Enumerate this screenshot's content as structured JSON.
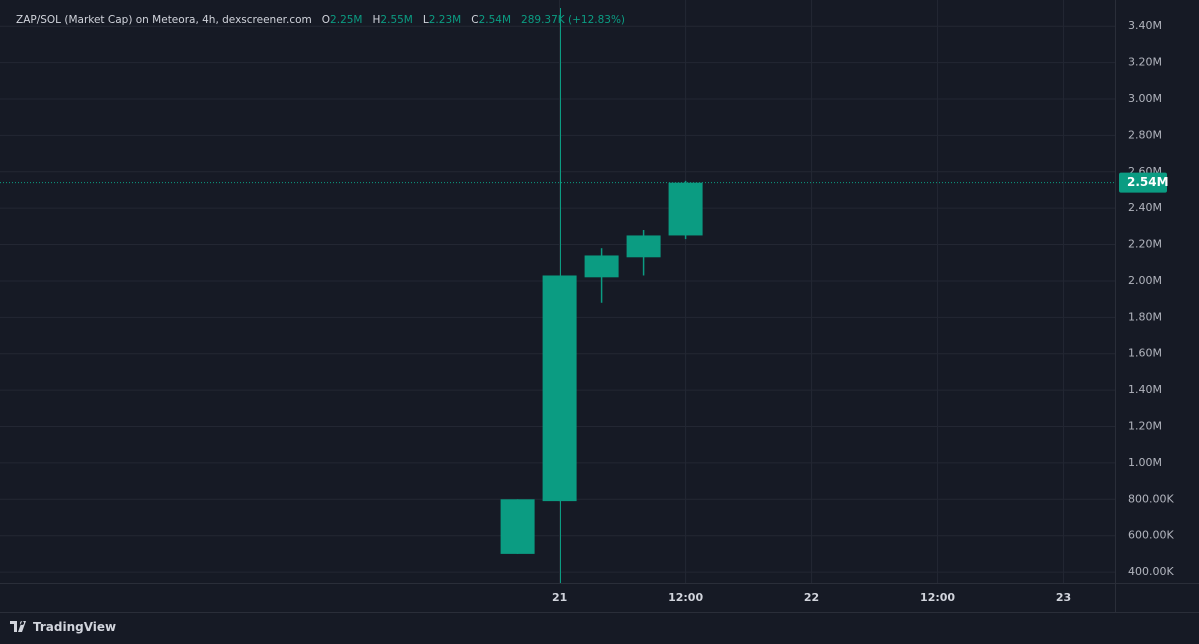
{
  "chart_data": {
    "type": "candlestick",
    "title": "ZAP/SOL (Market Cap) on Meteora, 4h, dexscreener.com",
    "legend": {
      "o_label": "O",
      "open": "2.25M",
      "h_label": "H",
      "high": "2.55M",
      "l_label": "L",
      "low": "2.23M",
      "c_label": "C",
      "close": "2.54M",
      "change": "289.37K (+12.83%)"
    },
    "x": [
      -4,
      0,
      4,
      8,
      12
    ],
    "open": [
      500000,
      790000,
      2020000,
      2130000,
      2250000
    ],
    "high": [
      800000,
      2030000,
      2180000,
      2280000,
      2550000
    ],
    "low": [
      500000,
      790000,
      1880000,
      2030000,
      2230000
    ],
    "close": [
      800000,
      2030000,
      2140000,
      2250000,
      2540000
    ],
    "color": "#0b9c82",
    "xlim": [
      -53.3,
      52.9
    ],
    "xticks": [
      {
        "value": 0,
        "label": "21"
      },
      {
        "value": 12,
        "label": "12:00"
      },
      {
        "value": 24,
        "label": "22"
      },
      {
        "value": 36,
        "label": "12:00"
      },
      {
        "value": 48,
        "label": "23"
      }
    ],
    "ylim": [
      340000,
      3500000
    ],
    "yticks": [
      {
        "value": 400000,
        "label": "400.00K"
      },
      {
        "value": 600000,
        "label": "600.00K"
      },
      {
        "value": 800000,
        "label": "800.00K"
      },
      {
        "value": 1000000,
        "label": "1.00M"
      },
      {
        "value": 1200000,
        "label": "1.20M"
      },
      {
        "value": 1400000,
        "label": "1.40M"
      },
      {
        "value": 1600000,
        "label": "1.60M"
      },
      {
        "value": 1800000,
        "label": "1.80M"
      },
      {
        "value": 2000000,
        "label": "2.00M"
      },
      {
        "value": 2200000,
        "label": "2.20M"
      },
      {
        "value": 2400000,
        "label": "2.40M"
      },
      {
        "value": 2600000,
        "label": "2.60M"
      },
      {
        "value": 2800000,
        "label": "2.80M"
      },
      {
        "value": 3000000,
        "label": "3.00M"
      },
      {
        "value": 3200000,
        "label": "3.20M"
      },
      {
        "value": 3400000,
        "label": "3.40M"
      }
    ],
    "last_price": {
      "value": 2540000,
      "label": "2.54M"
    },
    "grid": true
  },
  "footer": {
    "brand": "TradingView"
  }
}
